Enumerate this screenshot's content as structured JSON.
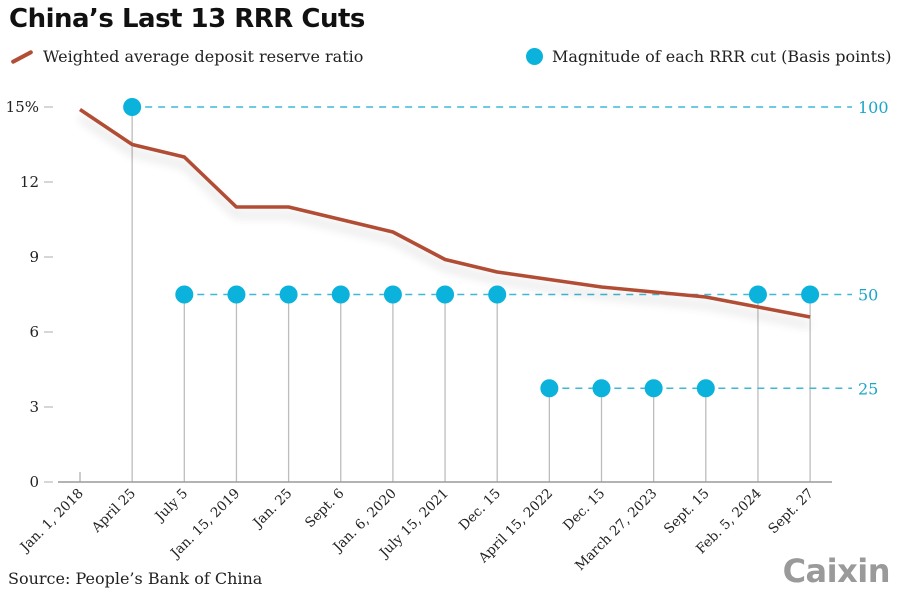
{
  "title": "China’s Last 13 RRR Cuts",
  "legend": {
    "line_label": "Weighted average deposit reserve ratio",
    "dot_label": "Magnitude of each RRR cut (Basis points)"
  },
  "source": "Source: People’s Bank of China",
  "logo": "Caixin",
  "colors": {
    "line": "#b24e35",
    "dots": "#0ab2dc",
    "dashed": "#3fb8d4",
    "stem": "#bdbdbd",
    "axis": "#9a9a9a"
  },
  "chart_data": {
    "type": "line",
    "title": "China’s Last 13 RRR Cuts",
    "xlabel": "",
    "ylabel": "",
    "categories": [
      "Jan. 1, 2018",
      "April 25",
      "July 5",
      "Jan. 15, 2019",
      "Jan. 25",
      "Sept. 6",
      "Jan. 6, 2020",
      "July 15, 2021",
      "Dec. 15",
      "April 15, 2022",
      "Dec. 15",
      "March 27, 2023",
      "Sept. 15",
      "Feb. 5, 2024",
      "Sept. 27"
    ],
    "y_ticks": [
      0,
      3,
      6,
      9,
      12,
      15
    ],
    "y_tick_labels": [
      "0",
      "3",
      "6",
      "9",
      "12",
      "15%"
    ],
    "ylim": [
      0,
      15
    ],
    "grid": false,
    "legend_position": "top",
    "series": [
      {
        "name": "Weighted average deposit reserve ratio",
        "type": "line",
        "unit": "%",
        "values": [
          14.9,
          13.5,
          13.0,
          11.0,
          11.0,
          10.5,
          10.0,
          8.9,
          8.4,
          8.1,
          7.8,
          7.6,
          7.4,
          7.0,
          6.6
        ]
      },
      {
        "name": "Magnitude of each RRR cut (Basis points)",
        "type": "lollipop",
        "unit": "basis points",
        "values": [
          null,
          100,
          50,
          50,
          50,
          50,
          50,
          50,
          50,
          25,
          25,
          25,
          25,
          50,
          50
        ]
      }
    ],
    "bp_levels": [
      {
        "value": 100,
        "label": "100",
        "plot_y": 15
      },
      {
        "value": 50,
        "label": "50",
        "plot_y": 7.5
      },
      {
        "value": 25,
        "label": "25",
        "plot_y": 3.75
      }
    ]
  }
}
